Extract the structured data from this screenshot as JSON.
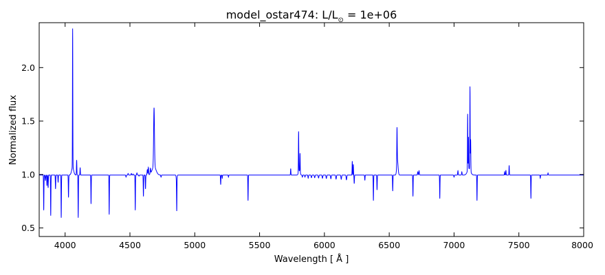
{
  "chart_data": {
    "type": "line",
    "title": {
      "prefix": "model_ostar474: L/L",
      "subscript": "⊙",
      "suffix": " = 1e+06"
    },
    "xlabel": "Wavelength [ Å ]",
    "ylabel": "Normalized flux",
    "xlim": [
      3800,
      8000
    ],
    "ylim": [
      0.42,
      2.42
    ],
    "xticks": [
      4000,
      4500,
      5000,
      5500,
      6000,
      6500,
      7000,
      7500,
      8000
    ],
    "yticks": [
      0.5,
      1.0,
      1.5,
      2.0
    ],
    "ytick_labels": [
      "0.5",
      "1.0",
      "1.5",
      "2.0"
    ],
    "grid": false,
    "legend": "none",
    "color": "#0000ff",
    "continuum": 0.995,
    "features": [
      {
        "wl": 3835,
        "depth": -0.33,
        "w": 1.4
      },
      {
        "wl": 3848,
        "depth": -0.05,
        "w": 2
      },
      {
        "wl": 3860,
        "depth": -0.1,
        "w": 1.5
      },
      {
        "wl": 3869,
        "depth": -0.12,
        "w": 1.5
      },
      {
        "wl": 3889,
        "depth": -0.38,
        "w": 1.4
      },
      {
        "wl": 3926,
        "depth": -0.13,
        "w": 1.5
      },
      {
        "wl": 3946,
        "depth": -0.07,
        "w": 1.5
      },
      {
        "wl": 3970,
        "depth": -0.4,
        "w": 1.4
      },
      {
        "wl": 4026,
        "depth": -0.21,
        "w": 1.5
      },
      {
        "wl": 4058,
        "depth": 1.3,
        "w": 1.3
      },
      {
        "wl": 4058,
        "depth": 0.07,
        "w": 8
      },
      {
        "wl": 4089,
        "depth": 0.14,
        "w": 1.5
      },
      {
        "wl": 4101,
        "depth": -0.4,
        "w": 1.4
      },
      {
        "wl": 4116,
        "depth": 0.07,
        "w": 1.5
      },
      {
        "wl": 4200,
        "depth": -0.27,
        "w": 1.4
      },
      {
        "wl": 4340,
        "depth": -0.37,
        "w": 1.4
      },
      {
        "wl": 4470,
        "depth": -0.02,
        "w": 2
      },
      {
        "wl": 4486,
        "depth": 0.015,
        "w": 2
      },
      {
        "wl": 4511,
        "depth": 0.015,
        "w": 2
      },
      {
        "wl": 4524,
        "depth": 0.01,
        "w": 2
      },
      {
        "wl": 4541,
        "depth": -0.33,
        "w": 1.4
      },
      {
        "wl": 4554,
        "depth": 0.02,
        "w": 2
      },
      {
        "wl": 4570,
        "depth": -0.01,
        "w": 2
      },
      {
        "wl": 4604,
        "depth": -0.2,
        "w": 1.5
      },
      {
        "wl": 4620,
        "depth": -0.13,
        "w": 1.5
      },
      {
        "wl": 4634,
        "depth": 0.05,
        "w": 2
      },
      {
        "wl": 4642,
        "depth": 0.07,
        "w": 2
      },
      {
        "wl": 4658,
        "depth": 0.05,
        "w": 2
      },
      {
        "wl": 4686,
        "depth": 0.55,
        "w": 3.2
      },
      {
        "wl": 4686,
        "depth": 0.08,
        "w": 15
      },
      {
        "wl": 4740,
        "depth": -0.02,
        "w": 2
      },
      {
        "wl": 4861,
        "depth": -0.29,
        "w": 1.4
      },
      {
        "wl": 4860,
        "depth": -0.05,
        "w": 3
      },
      {
        "wl": 5200,
        "depth": -0.09,
        "w": 1.5
      },
      {
        "wl": 5212,
        "depth": -0.03,
        "w": 1.5
      },
      {
        "wl": 5260,
        "depth": -0.02,
        "w": 1.5
      },
      {
        "wl": 5411,
        "depth": -0.24,
        "w": 1.4
      },
      {
        "wl": 5740,
        "depth": 0.06,
        "w": 1.5
      },
      {
        "wl": 5801,
        "depth": 0.38,
        "w": 1.4
      },
      {
        "wl": 5812,
        "depth": 0.18,
        "w": 1.4
      },
      {
        "wl": 5806,
        "depth": 0.04,
        "w": 6
      },
      {
        "wl": 5830,
        "depth": -0.02,
        "w": 2
      },
      {
        "wl": 5850,
        "depth": -0.02,
        "w": 2
      },
      {
        "wl": 5875,
        "depth": -0.03,
        "w": 2
      },
      {
        "wl": 5900,
        "depth": -0.025,
        "w": 2.5
      },
      {
        "wl": 5925,
        "depth": -0.025,
        "w": 2.5
      },
      {
        "wl": 5955,
        "depth": -0.028,
        "w": 2.5
      },
      {
        "wl": 5985,
        "depth": -0.03,
        "w": 2.5
      },
      {
        "wl": 6015,
        "depth": -0.032,
        "w": 2.5
      },
      {
        "wl": 6050,
        "depth": -0.035,
        "w": 2.5
      },
      {
        "wl": 6090,
        "depth": -0.038,
        "w": 2.5
      },
      {
        "wl": 6130,
        "depth": -0.04,
        "w": 2.5
      },
      {
        "wl": 6170,
        "depth": -0.045,
        "w": 2.5
      },
      {
        "wl": 6215,
        "depth": 0.13,
        "w": 1.4
      },
      {
        "wl": 6223,
        "depth": 0.1,
        "w": 1.4
      },
      {
        "wl": 6230,
        "depth": -0.08,
        "w": 1.5
      },
      {
        "wl": 6312,
        "depth": -0.05,
        "w": 1.5
      },
      {
        "wl": 6378,
        "depth": -0.24,
        "w": 1.4
      },
      {
        "wl": 6406,
        "depth": -0.14,
        "w": 1.5
      },
      {
        "wl": 6527,
        "depth": -0.15,
        "w": 1.5
      },
      {
        "wl": 6560,
        "depth": 0.33,
        "w": 1.6
      },
      {
        "wl": 6563,
        "depth": 0.14,
        "w": 5
      },
      {
        "wl": 6683,
        "depth": -0.2,
        "w": 1.4
      },
      {
        "wl": 6720,
        "depth": 0.03,
        "w": 2
      },
      {
        "wl": 6730,
        "depth": 0.04,
        "w": 2
      },
      {
        "wl": 6890,
        "depth": -0.22,
        "w": 1.4
      },
      {
        "wl": 7000,
        "depth": -0.02,
        "w": 2
      },
      {
        "wl": 7030,
        "depth": 0.04,
        "w": 1.8
      },
      {
        "wl": 7060,
        "depth": 0.03,
        "w": 1.8
      },
      {
        "wl": 7105,
        "depth": 0.53,
        "w": 1.3
      },
      {
        "wl": 7111,
        "depth": 0.3,
        "w": 1.3
      },
      {
        "wl": 7123,
        "depth": 0.78,
        "w": 1.3
      },
      {
        "wl": 7128,
        "depth": 0.3,
        "w": 1.4
      },
      {
        "wl": 7115,
        "depth": 0.06,
        "w": 12
      },
      {
        "wl": 7177,
        "depth": -0.24,
        "w": 1.4
      },
      {
        "wl": 7390,
        "depth": 0.03,
        "w": 1.5
      },
      {
        "wl": 7400,
        "depth": 0.045,
        "w": 1.5
      },
      {
        "wl": 7425,
        "depth": 0.09,
        "w": 1.4
      },
      {
        "wl": 7593,
        "depth": -0.22,
        "w": 1.4
      },
      {
        "wl": 7665,
        "depth": -0.03,
        "w": 1.5
      },
      {
        "wl": 7725,
        "depth": 0.02,
        "w": 1.5
      }
    ]
  }
}
